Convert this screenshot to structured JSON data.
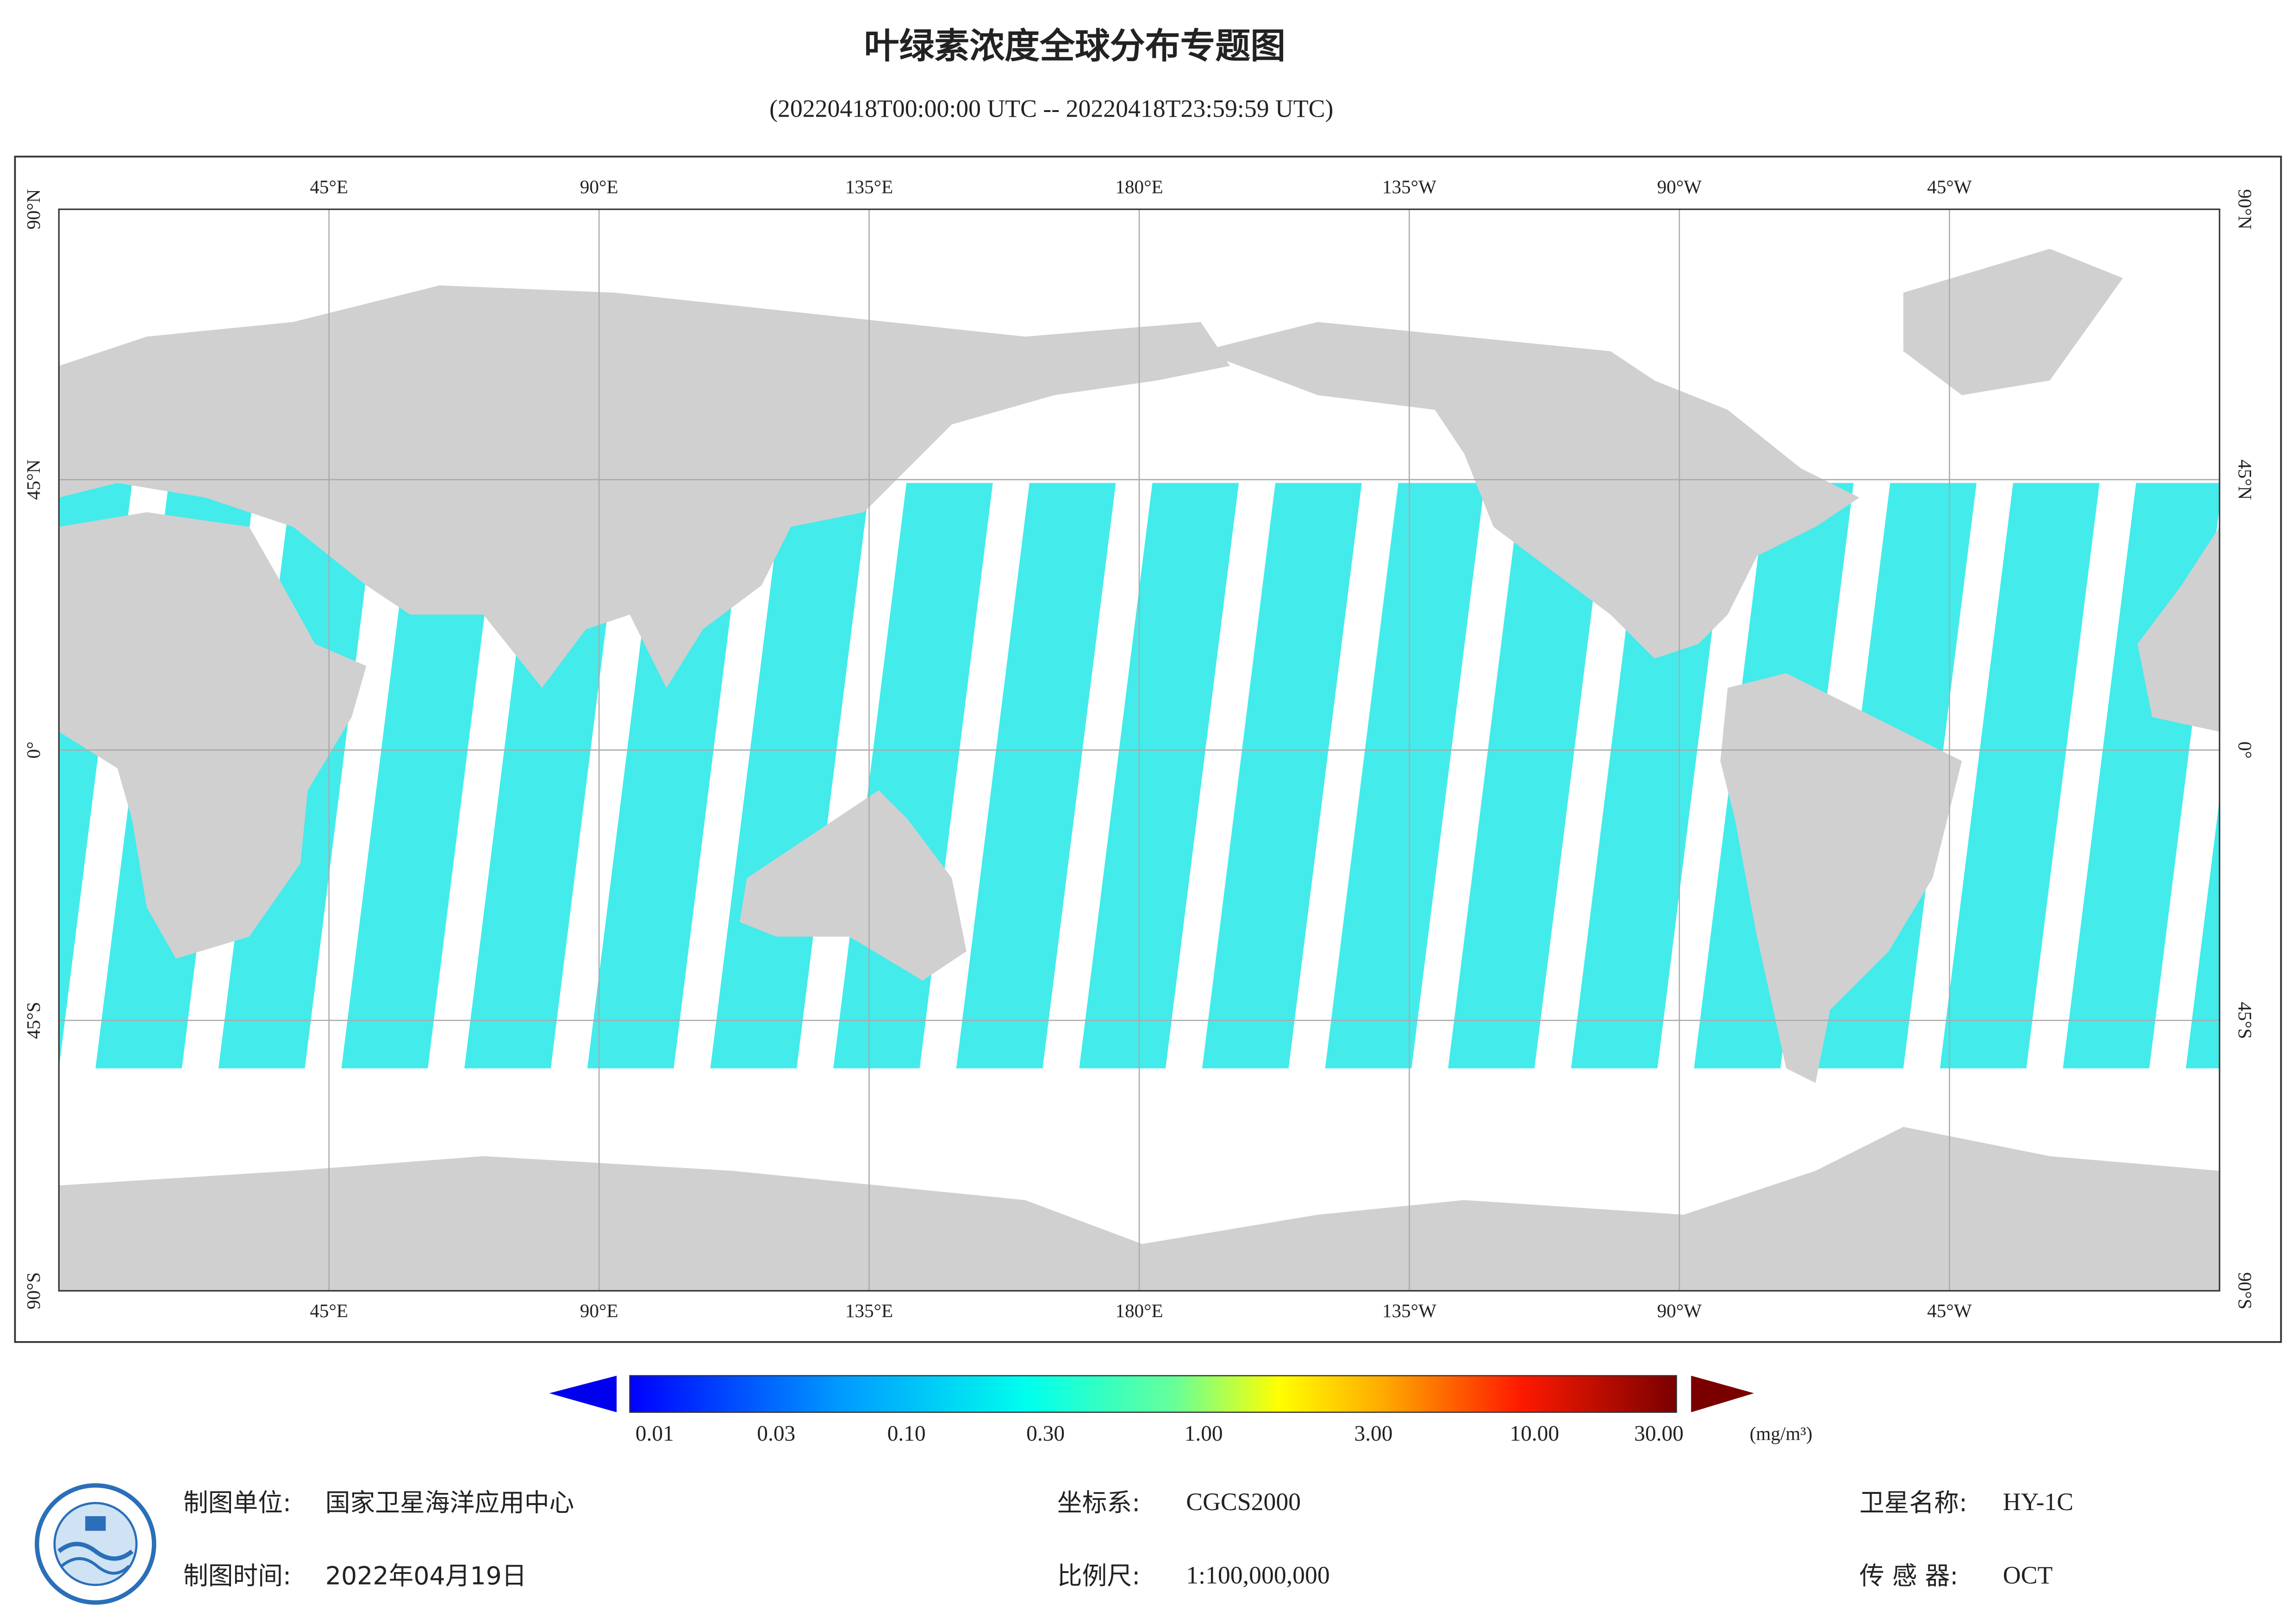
{
  "header": {
    "title": "叶绿素浓度全球分布专题图",
    "subtitle": "(20220418T00:00:00 UTC -- 20220418T23:59:59 UTC)"
  },
  "map": {
    "lon_labels": [
      "45°E",
      "90°E",
      "135°E",
      "180°E",
      "135°W",
      "90°W",
      "45°W"
    ],
    "lat_labels": [
      "90°N",
      "45°N",
      "0°",
      "45°S",
      "90°S"
    ]
  },
  "colorbar": {
    "labels": [
      "0.01",
      "0.03",
      "0.10",
      "0.30",
      "1.00",
      "3.00",
      "10.00",
      "30.00"
    ],
    "unit": "(mg/m³)"
  },
  "footer": {
    "left": [
      {
        "label": "制图单位:",
        "value": "国家卫星海洋应用中心"
      },
      {
        "label": "制图时间:",
        "value": "2022年04月19日"
      }
    ],
    "middle": [
      {
        "label": "坐标系:",
        "value": "CGCS2000"
      },
      {
        "label": "比例尺:",
        "value": "1:100,000,000"
      }
    ],
    "right": [
      {
        "label": "卫星名称:",
        "value": "HY-1C"
      },
      {
        "label": "传 感 器:",
        "value": "OCT"
      }
    ]
  }
}
